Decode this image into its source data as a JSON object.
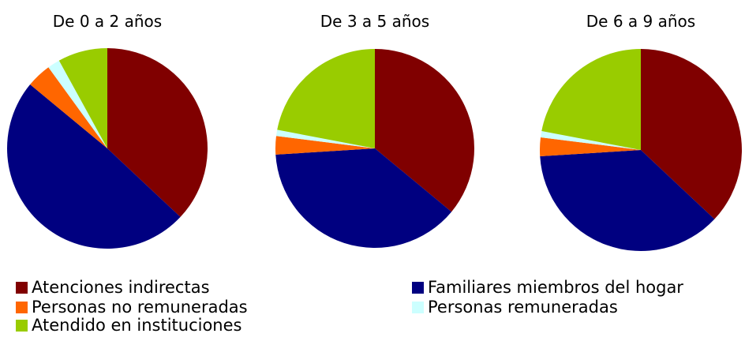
{
  "chart_data": [
    {
      "type": "pie",
      "title": "De 0 a 2 años",
      "values": [
        37,
        49,
        4,
        2,
        8
      ]
    },
    {
      "type": "pie",
      "title": "De 3 a 5 años",
      "values": [
        36,
        38,
        3,
        1,
        22
      ]
    },
    {
      "type": "pie",
      "title": "De 6 a 9 años",
      "values": [
        37,
        37,
        3,
        1,
        22
      ]
    }
  ],
  "legend": {
    "labels": [
      "Atenciones indirectas",
      "Familiares miembros del hogar",
      "Personas no remuneradas",
      "Personas remuneradas",
      "Atendido en instituciones"
    ],
    "colors": [
      "#800000",
      "#000080",
      "#ff6600",
      "#ccffff",
      "#99cc00"
    ]
  }
}
